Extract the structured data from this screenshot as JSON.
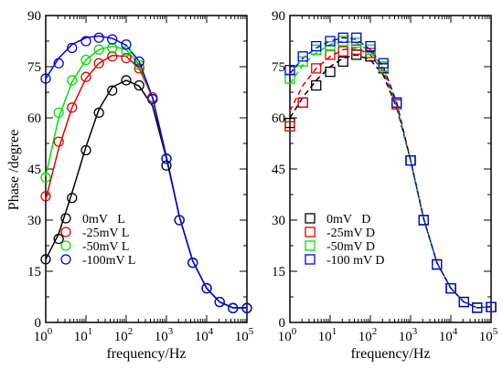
{
  "figure": {
    "ylabel": "Phase /degree"
  },
  "chart_data": [
    {
      "type": "scatter",
      "xlabel": "frequency/Hz",
      "ylabel": "Phase /degree",
      "xscale": "log",
      "xlim": [
        1,
        100000
      ],
      "ylim": [
        0,
        90
      ],
      "xticks": [
        1,
        10,
        100,
        1000,
        10000,
        100000
      ],
      "xtick_labels": [
        {
          "base": "10",
          "exp": "0"
        },
        {
          "base": "10",
          "exp": "1"
        },
        {
          "base": "10",
          "exp": "2"
        },
        {
          "base": "10",
          "exp": "3"
        },
        {
          "base": "10",
          "exp": "4"
        },
        {
          "base": "10",
          "exp": "5"
        }
      ],
      "yticks": [
        0,
        15,
        30,
        45,
        60,
        75,
        90
      ],
      "ytick_labels": [
        "0",
        "15",
        "30",
        "45",
        "60",
        "75",
        "90"
      ],
      "legend_position": "lower-left",
      "marker": "circle",
      "series": [
        {
          "name": "0mV   L",
          "color": "#000000",
          "x": [
            1,
            2.1,
            4.5,
            10,
            21,
            45,
            100,
            210,
            450,
            1000,
            2100,
            4500,
            10000,
            21000,
            45000,
            100000
          ],
          "points": [
            18.5,
            24.5,
            36.5,
            50.5,
            61.5,
            68,
            71,
            69.5,
            65.5,
            46,
            30,
            17.5,
            10,
            6,
            4.2,
            4.2
          ],
          "fit": [
            18.5,
            26,
            38,
            51.5,
            62.5,
            69,
            71,
            69.3,
            63.5,
            48,
            31,
            18,
            10,
            6,
            4.3,
            4.3
          ]
        },
        {
          "name": "-25mV L",
          "color": "#e00000",
          "x": [
            1,
            2.1,
            4.5,
            10,
            21,
            45,
            100,
            210,
            450,
            1000,
            2100,
            4500,
            10000,
            21000,
            45000,
            100000
          ],
          "points": [
            37,
            53,
            63,
            72,
            76,
            78,
            77.5,
            74.5,
            66,
            48,
            30,
            17.5,
            10,
            6,
            4.2,
            4.2
          ],
          "fit": [
            36,
            51,
            63,
            71.5,
            76,
            78.3,
            78,
            74.5,
            66,
            48.5,
            31,
            18,
            10,
            6,
            4.3,
            4.3
          ]
        },
        {
          "name": "-50mV L",
          "color": "#00e000",
          "x": [
            1,
            2.1,
            4.5,
            10,
            21,
            45,
            100,
            210,
            450,
            1000,
            2100,
            4500,
            10000,
            21000,
            45000,
            100000
          ],
          "points": [
            42.5,
            61.5,
            71,
            77,
            80,
            80.5,
            79.5,
            75.5,
            65.5,
            48,
            30,
            17.5,
            10,
            6,
            4.2,
            4.2
          ],
          "fit": [
            43,
            60,
            70.5,
            77,
            80,
            81,
            80,
            75.5,
            66,
            48.5,
            31,
            18,
            10,
            6,
            4.3,
            4.3
          ]
        },
        {
          "name": "-100mV L",
          "color": "#0000e0",
          "x": [
            1,
            2.1,
            4.5,
            10,
            21,
            45,
            100,
            210,
            450,
            1000,
            2100,
            4500,
            10000,
            21000,
            45000,
            100000
          ],
          "points": [
            71.5,
            76,
            80.5,
            82.5,
            83.5,
            83,
            81.5,
            76.5,
            65.5,
            48,
            30,
            17.5,
            10,
            6,
            4.2,
            4.2
          ],
          "fit": [
            71.5,
            77.5,
            81.5,
            83.5,
            84,
            83.3,
            81.3,
            76.5,
            66,
            48.5,
            31,
            18,
            10,
            6,
            4.3,
            4.3
          ]
        }
      ]
    },
    {
      "type": "scatter",
      "xlabel": "frequency/Hz",
      "xscale": "log",
      "xlim": [
        1,
        100000
      ],
      "ylim": [
        0,
        90
      ],
      "xticks": [
        1,
        10,
        100,
        1000,
        10000,
        100000
      ],
      "xtick_labels": [
        {
          "base": "10",
          "exp": "0"
        },
        {
          "base": "10",
          "exp": "1"
        },
        {
          "base": "10",
          "exp": "2"
        },
        {
          "base": "10",
          "exp": "3"
        },
        {
          "base": "10",
          "exp": "4"
        },
        {
          "base": "10",
          "exp": "5"
        }
      ],
      "yticks": [
        0,
        15,
        30,
        45,
        60,
        75,
        90
      ],
      "ytick_labels": [
        "0",
        "15",
        "30",
        "45",
        "60",
        "75",
        "90"
      ],
      "legend_position": "lower-left",
      "marker": "square",
      "series": [
        {
          "name": "0mV   D",
          "color": "#000000",
          "x": [
            1,
            2.1,
            4.5,
            10,
            21,
            45,
            100,
            210,
            450,
            1000,
            2100,
            4500,
            10000,
            21000,
            45000,
            100000
          ],
          "points": [
            58.5,
            64.5,
            69.5,
            73.5,
            76.5,
            78.5,
            78,
            74.5,
            64,
            47.5,
            30,
            17,
            10,
            6,
            4.3,
            4.5
          ],
          "fit": [
            60,
            66,
            71,
            75,
            77.5,
            78.5,
            77,
            72.5,
            63,
            47.5,
            30.5,
            17.5,
            10,
            6,
            4.3,
            4.6
          ]
        },
        {
          "name": "-25mV D",
          "color": "#e00000",
          "x": [
            1,
            2.1,
            4.5,
            10,
            21,
            45,
            100,
            210,
            450,
            1000,
            2100,
            4500,
            10000,
            21000,
            45000,
            100000
          ],
          "points": [
            57.5,
            64.5,
            74.5,
            78.5,
            79.5,
            80,
            79,
            75,
            64,
            47.5,
            30,
            17,
            10,
            6,
            4.3,
            4.5
          ],
          "fit": [
            62,
            69.5,
            74.5,
            78,
            80,
            80.5,
            78.5,
            73.5,
            63.5,
            47.5,
            30.5,
            17.5,
            10,
            6,
            4.3,
            4.6
          ]
        },
        {
          "name": "-50mV D",
          "color": "#00e000",
          "x": [
            1,
            2.1,
            4.5,
            10,
            21,
            45,
            100,
            210,
            450,
            1000,
            2100,
            4500,
            10000,
            21000,
            45000,
            100000
          ],
          "points": [
            71.5,
            76.5,
            80,
            81,
            82.5,
            82,
            80,
            75,
            64.5,
            47.5,
            30,
            17,
            10,
            6,
            4.3,
            4.5
          ],
          "fit": [
            70,
            75.5,
            79,
            81.5,
            82.5,
            82,
            79.5,
            74.5,
            64,
            47.5,
            30.5,
            17.5,
            10,
            6,
            4.3,
            4.6
          ]
        },
        {
          "name": "-100 mV D",
          "color": "#0000e0",
          "x": [
            1,
            2.1,
            4.5,
            10,
            21,
            45,
            100,
            210,
            450,
            1000,
            2100,
            4500,
            10000,
            21000,
            45000,
            100000
          ],
          "points": [
            74,
            78,
            81,
            82.5,
            83.5,
            83.5,
            81,
            76,
            64.5,
            47.5,
            30,
            17,
            10,
            6,
            4.3,
            4.5
          ],
          "fit": [
            73,
            77.5,
            80.5,
            82.5,
            83.5,
            83,
            80,
            75,
            64.5,
            47.5,
            30.5,
            17.5,
            10,
            6,
            4.3,
            4.6
          ]
        }
      ]
    }
  ]
}
